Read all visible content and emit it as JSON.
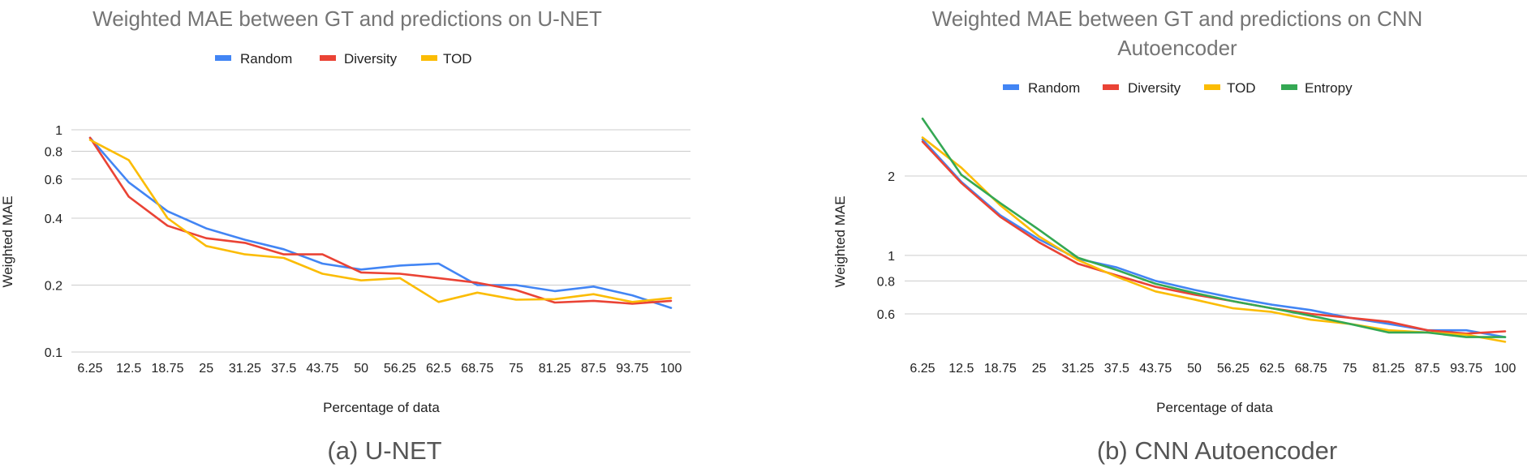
{
  "chart_data": [
    {
      "type": "line",
      "title": "Weighted MAE between GT and predictions on U-NET",
      "xlabel": "Percentage of data",
      "ylabel": "Weighted MAE",
      "caption": "(a) U-NET",
      "yscale": "log",
      "ylim": [
        0.1,
        1
      ],
      "yticks": [
        "0.1",
        "0.2",
        "0.4",
        "0.6",
        "0.8",
        "1"
      ],
      "grid": true,
      "legend_position": "top",
      "categories": [
        "6.25",
        "12.5",
        "18.75",
        "25",
        "31.25",
        "37.5",
        "43.75",
        "50",
        "56.25",
        "62.5",
        "68.75",
        "75",
        "81.25",
        "87.5",
        "93.75",
        "100"
      ],
      "series": [
        {
          "name": "Random",
          "color": "#4285F4",
          "values": [
            0.92,
            0.58,
            0.43,
            0.36,
            0.32,
            0.29,
            0.25,
            0.235,
            0.245,
            0.25,
            0.2,
            0.2,
            0.188,
            0.197,
            0.18,
            0.158
          ]
        },
        {
          "name": "Diversity",
          "color": "#EA4335",
          "values": [
            0.92,
            0.5,
            0.37,
            0.325,
            0.31,
            0.275,
            0.275,
            0.228,
            0.225,
            0.215,
            0.205,
            0.19,
            0.167,
            0.17,
            0.165,
            0.17
          ]
        },
        {
          "name": "TOD",
          "color": "#FBBC04",
          "values": [
            0.9,
            0.73,
            0.4,
            0.3,
            0.275,
            0.265,
            0.225,
            0.21,
            0.215,
            0.168,
            0.185,
            0.172,
            0.173,
            0.182,
            0.168,
            0.175
          ]
        }
      ]
    },
    {
      "type": "line",
      "title": "Weighted MAE between GT and predictions on CNN Autoencoder",
      "title_lines": [
        "Weighted MAE between GT and predictions on CNN",
        "Autoencoder"
      ],
      "xlabel": "Percentage of data",
      "ylabel": "Weighted MAE",
      "caption": "(b) CNN Autoencoder",
      "yscale": "log",
      "ylim": [
        0.43,
        3.6
      ],
      "yticks": [
        "0.6",
        "0.8",
        "1",
        "2"
      ],
      "grid": true,
      "legend_position": "top",
      "categories": [
        "6.25",
        "12.5",
        "18.75",
        "25",
        "31.25",
        "37.5",
        "43.75",
        "50",
        "56.25",
        "62.5",
        "68.75",
        "75",
        "81.25",
        "87.5",
        "93.75",
        "100"
      ],
      "series": [
        {
          "name": "Random",
          "color": "#4285F4",
          "values": [
            2.75,
            1.9,
            1.42,
            1.15,
            0.97,
            0.9,
            0.8,
            0.74,
            0.69,
            0.65,
            0.62,
            0.58,
            0.55,
            0.52,
            0.52,
            0.49
          ]
        },
        {
          "name": "Diversity",
          "color": "#EA4335",
          "values": [
            2.7,
            1.88,
            1.4,
            1.12,
            0.93,
            0.84,
            0.76,
            0.71,
            0.67,
            0.63,
            0.6,
            0.58,
            0.56,
            0.52,
            0.505,
            0.515
          ]
        },
        {
          "name": "TOD",
          "color": "#FBBC04",
          "values": [
            2.8,
            2.15,
            1.55,
            1.18,
            0.96,
            0.83,
            0.73,
            0.68,
            0.63,
            0.61,
            0.57,
            0.55,
            0.52,
            0.51,
            0.5,
            0.47
          ]
        },
        {
          "name": "Entropy",
          "color": "#34A853",
          "values": [
            3.3,
            2.02,
            1.58,
            1.25,
            0.98,
            0.88,
            0.78,
            0.72,
            0.67,
            0.63,
            0.59,
            0.55,
            0.51,
            0.51,
            0.49,
            0.49
          ]
        }
      ]
    }
  ]
}
